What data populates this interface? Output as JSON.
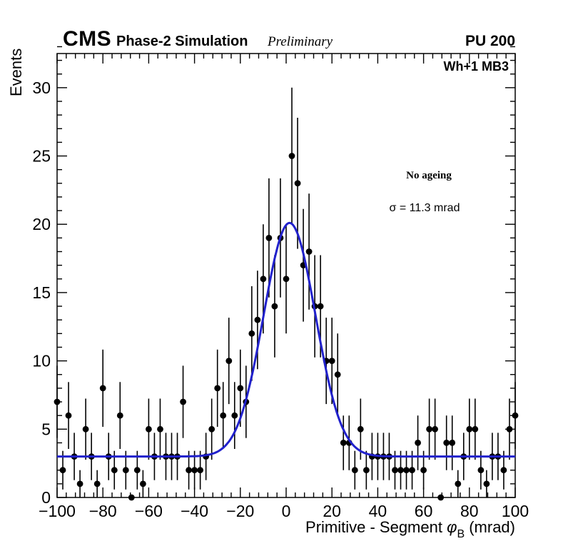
{
  "header": {
    "experiment": "CMS",
    "subtitle": "Phase-2 Simulation",
    "preliminary": "Preliminary",
    "pileup": "PU 200"
  },
  "plot": {
    "region_label": "Wh+1 MB3",
    "annotation_ageing": "No ageing",
    "annotation_sigma": "σ = 11.3 mrad"
  },
  "chart_data": {
    "type": "scatter",
    "title": "",
    "ylabel": "Events",
    "xlabel_parts": {
      "prefix": "Primitive - Segment ",
      "symbol": "φ",
      "subscript": "B",
      "suffix": " (mrad)"
    },
    "xlim": [
      -100,
      100
    ],
    "ylim": [
      0,
      32.5
    ],
    "x_ticks": [
      -100,
      -80,
      -60,
      -40,
      -20,
      0,
      20,
      40,
      60,
      80,
      100
    ],
    "x_minor_step": 4,
    "y_ticks": [
      0,
      5,
      10,
      15,
      20,
      25,
      30
    ],
    "y_minor_step": 1,
    "grid": false,
    "legend": "none",
    "marker_color": "#000000",
    "error_model": "poisson sqrt(y)",
    "points": [
      [
        -100,
        7
      ],
      [
        -97.5,
        2
      ],
      [
        -95,
        6
      ],
      [
        -92.5,
        3
      ],
      [
        -90,
        1
      ],
      [
        -87.5,
        5
      ],
      [
        -85,
        3
      ],
      [
        -82.5,
        1
      ],
      [
        -80,
        8
      ],
      [
        -77.5,
        3
      ],
      [
        -75,
        2
      ],
      [
        -72.5,
        6
      ],
      [
        -70,
        2
      ],
      [
        -67.5,
        0
      ],
      [
        -65,
        2
      ],
      [
        -62.5,
        1
      ],
      [
        -60,
        5
      ],
      [
        -57.5,
        3
      ],
      [
        -55,
        5
      ],
      [
        -52.5,
        3
      ],
      [
        -50,
        3
      ],
      [
        -47.5,
        3
      ],
      [
        -45,
        7
      ],
      [
        -42.5,
        2
      ],
      [
        -40,
        2
      ],
      [
        -37.5,
        2
      ],
      [
        -35,
        3
      ],
      [
        -32.5,
        5
      ],
      [
        -30,
        8
      ],
      [
        -27.5,
        6
      ],
      [
        -25,
        10
      ],
      [
        -22.5,
        6
      ],
      [
        -20,
        8
      ],
      [
        -17.5,
        7
      ],
      [
        -15,
        12
      ],
      [
        -12.5,
        13
      ],
      [
        -10,
        16
      ],
      [
        -7.5,
        19
      ],
      [
        -5,
        14
      ],
      [
        -2.5,
        19
      ],
      [
        0,
        16
      ],
      [
        2.5,
        25
      ],
      [
        5,
        23
      ],
      [
        7.5,
        17
      ],
      [
        10,
        18
      ],
      [
        12.5,
        14
      ],
      [
        15,
        14
      ],
      [
        17.5,
        10
      ],
      [
        20,
        10
      ],
      [
        22.5,
        9
      ],
      [
        25,
        4
      ],
      [
        27.5,
        4
      ],
      [
        30,
        2
      ],
      [
        32.5,
        5
      ],
      [
        35,
        2
      ],
      [
        37.5,
        3
      ],
      [
        40,
        3
      ],
      [
        42.5,
        3
      ],
      [
        45,
        3
      ],
      [
        47.5,
        2
      ],
      [
        50,
        2
      ],
      [
        52.5,
        2
      ],
      [
        55,
        2
      ],
      [
        57.5,
        4
      ],
      [
        60,
        2
      ],
      [
        62.5,
        5
      ],
      [
        65,
        5
      ],
      [
        67.5,
        0
      ],
      [
        70,
        4
      ],
      [
        72.5,
        4
      ],
      [
        75,
        1
      ],
      [
        77.5,
        3
      ],
      [
        80,
        5
      ],
      [
        82.5,
        5
      ],
      [
        85,
        2
      ],
      [
        87.5,
        1
      ],
      [
        90,
        3
      ],
      [
        92.5,
        3
      ],
      [
        95,
        2
      ],
      [
        97.5,
        5
      ],
      [
        100,
        6
      ]
    ],
    "fit": {
      "model": "gaussian_plus_constant",
      "background": 3.0,
      "amplitude": 17.1,
      "mean": 1.5,
      "sigma": 11.3,
      "color": "#2121cc"
    }
  }
}
